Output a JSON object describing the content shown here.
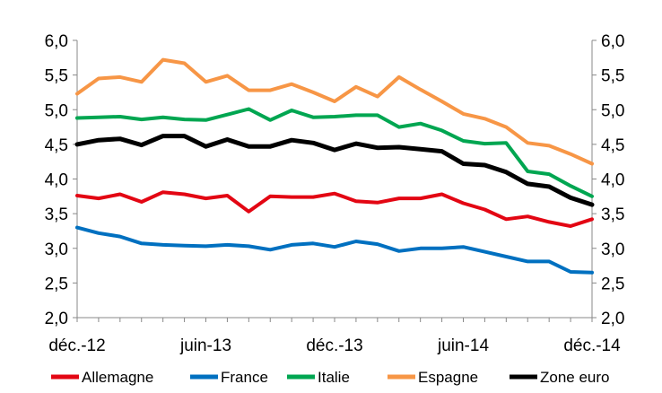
{
  "chart_data": {
    "type": "line",
    "x": [
      "déc.-12",
      "janv.-13",
      "févr.-13",
      "mars-13",
      "avr.-13",
      "mai-13",
      "juin-13",
      "juil.-13",
      "août-13",
      "sept.-13",
      "oct.-13",
      "nov.-13",
      "déc.-13",
      "janv.-14",
      "févr.-14",
      "mars-14",
      "avr.-14",
      "mai-14",
      "juin-14",
      "juil.-14",
      "août-14",
      "sept.-14",
      "oct.-14",
      "nov.-14",
      "déc.-14"
    ],
    "x_ticks": [
      "déc.-12",
      "juin-13",
      "déc.-13",
      "juin-14",
      "déc.-14"
    ],
    "y_ticks": [
      "2,0",
      "2,5",
      "3,0",
      "3,5",
      "4,0",
      "4,5",
      "5,0",
      "5,5",
      "6,0"
    ],
    "ylim": [
      2.0,
      6.0
    ],
    "grid": false,
    "secondary_y_axis": true,
    "legend_position": "bottom",
    "series": [
      {
        "name": "Allemagne",
        "color": "#e30613",
        "values": [
          3.76,
          3.72,
          3.78,
          3.67,
          3.81,
          3.78,
          3.72,
          3.76,
          3.53,
          3.75,
          3.74,
          3.74,
          3.79,
          3.68,
          3.66,
          3.72,
          3.72,
          3.78,
          3.65,
          3.56,
          3.42,
          3.46,
          3.38,
          3.32,
          3.42
        ]
      },
      {
        "name": "France",
        "color": "#0070c0",
        "values": [
          3.3,
          3.22,
          3.17,
          3.07,
          3.05,
          3.04,
          3.03,
          3.05,
          3.03,
          2.98,
          3.05,
          3.07,
          3.02,
          3.1,
          3.06,
          2.96,
          3.0,
          3.0,
          3.02,
          2.95,
          2.88,
          2.81,
          2.81,
          2.66,
          2.65
        ]
      },
      {
        "name": "Italie",
        "color": "#00a651",
        "values": [
          4.88,
          4.89,
          4.9,
          4.86,
          4.89,
          4.86,
          4.85,
          4.93,
          5.01,
          4.85,
          4.99,
          4.89,
          4.9,
          4.92,
          4.92,
          4.75,
          4.8,
          4.7,
          4.55,
          4.51,
          4.52,
          4.11,
          4.07,
          3.9,
          3.75
        ]
      },
      {
        "name": "Espagne",
        "color": "#f79646",
        "values": [
          5.23,
          5.45,
          5.47,
          5.4,
          5.72,
          5.67,
          5.4,
          5.49,
          5.28,
          5.28,
          5.37,
          5.25,
          5.12,
          5.33,
          5.19,
          5.47,
          5.29,
          5.12,
          4.94,
          4.87,
          4.75,
          4.52,
          4.48,
          4.36,
          4.22
        ]
      },
      {
        "name": "Zone euro",
        "color": "#000000",
        "values": [
          4.5,
          4.56,
          4.58,
          4.49,
          4.62,
          4.62,
          4.47,
          4.57,
          4.47,
          4.47,
          4.56,
          4.52,
          4.42,
          4.51,
          4.45,
          4.46,
          4.43,
          4.4,
          4.22,
          4.2,
          4.1,
          3.93,
          3.89,
          3.73,
          3.63
        ]
      }
    ]
  }
}
